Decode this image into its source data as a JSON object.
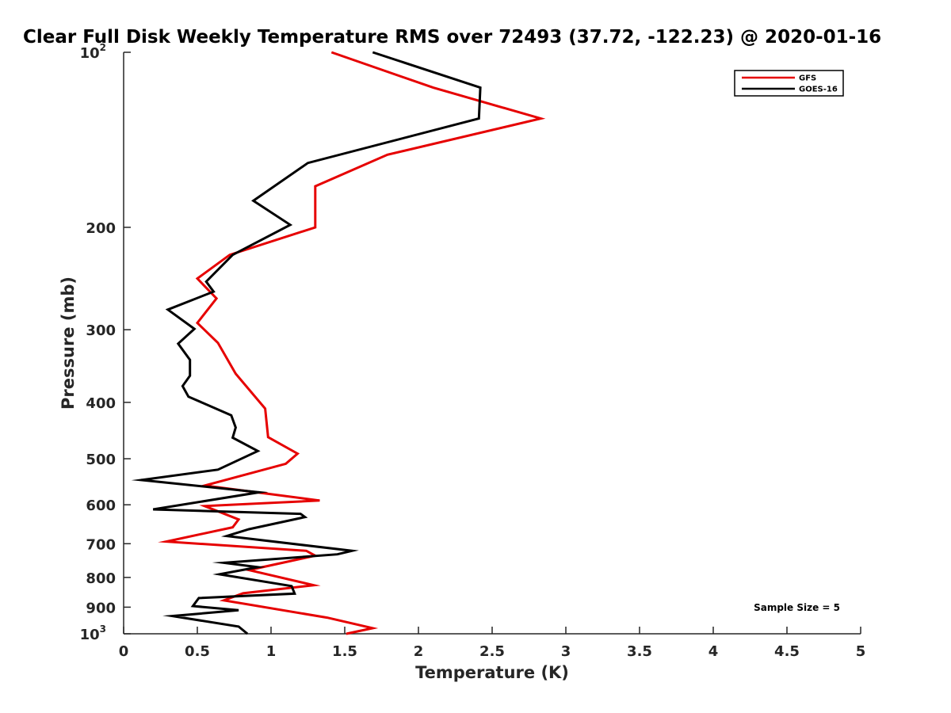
{
  "chart_data": {
    "type": "line",
    "title": "Clear Full Disk Weekly Temperature RMS over 72493 (37.72, -122.23) @ 2020-01-16",
    "xlabel": "Temperature (K)",
    "ylabel": "Pressure (mb)",
    "xlim": [
      0,
      5
    ],
    "ylim": [
      100,
      1000
    ],
    "y_scale": "log",
    "y_reversed": true,
    "grid": false,
    "legend_position": "top-right",
    "x_ticks": [
      "0",
      "0.5",
      "1",
      "1.5",
      "2",
      "2.5",
      "3",
      "3.5",
      "4",
      "4.5",
      "5"
    ],
    "y_ticks": [
      {
        "value": 100,
        "base": "10",
        "exp": "2"
      },
      {
        "value": 200,
        "label": "200"
      },
      {
        "value": 300,
        "label": "300"
      },
      {
        "value": 400,
        "label": "400"
      },
      {
        "value": 500,
        "label": "500"
      },
      {
        "value": 600,
        "label": "600"
      },
      {
        "value": 700,
        "label": "700"
      },
      {
        "value": 800,
        "label": "800"
      },
      {
        "value": 900,
        "label": "900"
      },
      {
        "value": 1000,
        "base": "10",
        "exp": "3"
      }
    ],
    "annotation": "Sample Size = 5",
    "series": [
      {
        "name": "GFS",
        "color": "#e60000",
        "points": [
          [
            1.41,
            100
          ],
          [
            2.1,
            115
          ],
          [
            2.83,
            130
          ],
          [
            1.79,
            150
          ],
          [
            1.3,
            170
          ],
          [
            1.3,
            200
          ],
          [
            0.72,
            223
          ],
          [
            0.5,
            245
          ],
          [
            0.63,
            265
          ],
          [
            0.5,
            292
          ],
          [
            0.64,
            316
          ],
          [
            0.76,
            357
          ],
          [
            0.96,
            410
          ],
          [
            0.98,
            459
          ],
          [
            1.18,
            490
          ],
          [
            1.1,
            510
          ],
          [
            0.55,
            556
          ],
          [
            1.33,
            590
          ],
          [
            0.55,
            603
          ],
          [
            0.78,
            636
          ],
          [
            0.74,
            656
          ],
          [
            0.29,
            694
          ],
          [
            1.24,
            720
          ],
          [
            1.3,
            734
          ],
          [
            0.85,
            777
          ],
          [
            1.29,
            825
          ],
          [
            0.81,
            852
          ],
          [
            0.68,
            876
          ],
          [
            1.38,
            938
          ],
          [
            1.69,
            978
          ],
          [
            1.51,
            1000
          ]
        ]
      },
      {
        "name": "GOES-16",
        "color": "#000000",
        "points": [
          [
            1.69,
            100
          ],
          [
            2.42,
            115
          ],
          [
            2.41,
            130
          ],
          [
            1.25,
            155
          ],
          [
            0.88,
            180
          ],
          [
            1.13,
            198
          ],
          [
            0.74,
            223
          ],
          [
            0.56,
            248
          ],
          [
            0.61,
            258
          ],
          [
            0.3,
            277
          ],
          [
            0.48,
            299
          ],
          [
            0.37,
            317
          ],
          [
            0.45,
            338
          ],
          [
            0.45,
            360
          ],
          [
            0.4,
            375
          ],
          [
            0.44,
            391
          ],
          [
            0.73,
            421
          ],
          [
            0.76,
            442
          ],
          [
            0.74,
            460
          ],
          [
            0.91,
            485
          ],
          [
            0.64,
            522
          ],
          [
            0.12,
            544
          ],
          [
            0.92,
            571
          ],
          [
            0.2,
            611
          ],
          [
            1.2,
            622
          ],
          [
            1.23,
            630
          ],
          [
            0.85,
            661
          ],
          [
            0.7,
            679
          ],
          [
            1.55,
            720
          ],
          [
            1.45,
            730
          ],
          [
            0.68,
            755
          ],
          [
            0.91,
            768
          ],
          [
            0.65,
            790
          ],
          [
            1.14,
            828
          ],
          [
            1.16,
            853
          ],
          [
            0.51,
            868
          ],
          [
            0.47,
            896
          ],
          [
            0.78,
            911
          ],
          [
            0.33,
            932
          ],
          [
            0.78,
            972
          ],
          [
            0.84,
            1000
          ]
        ]
      }
    ]
  }
}
